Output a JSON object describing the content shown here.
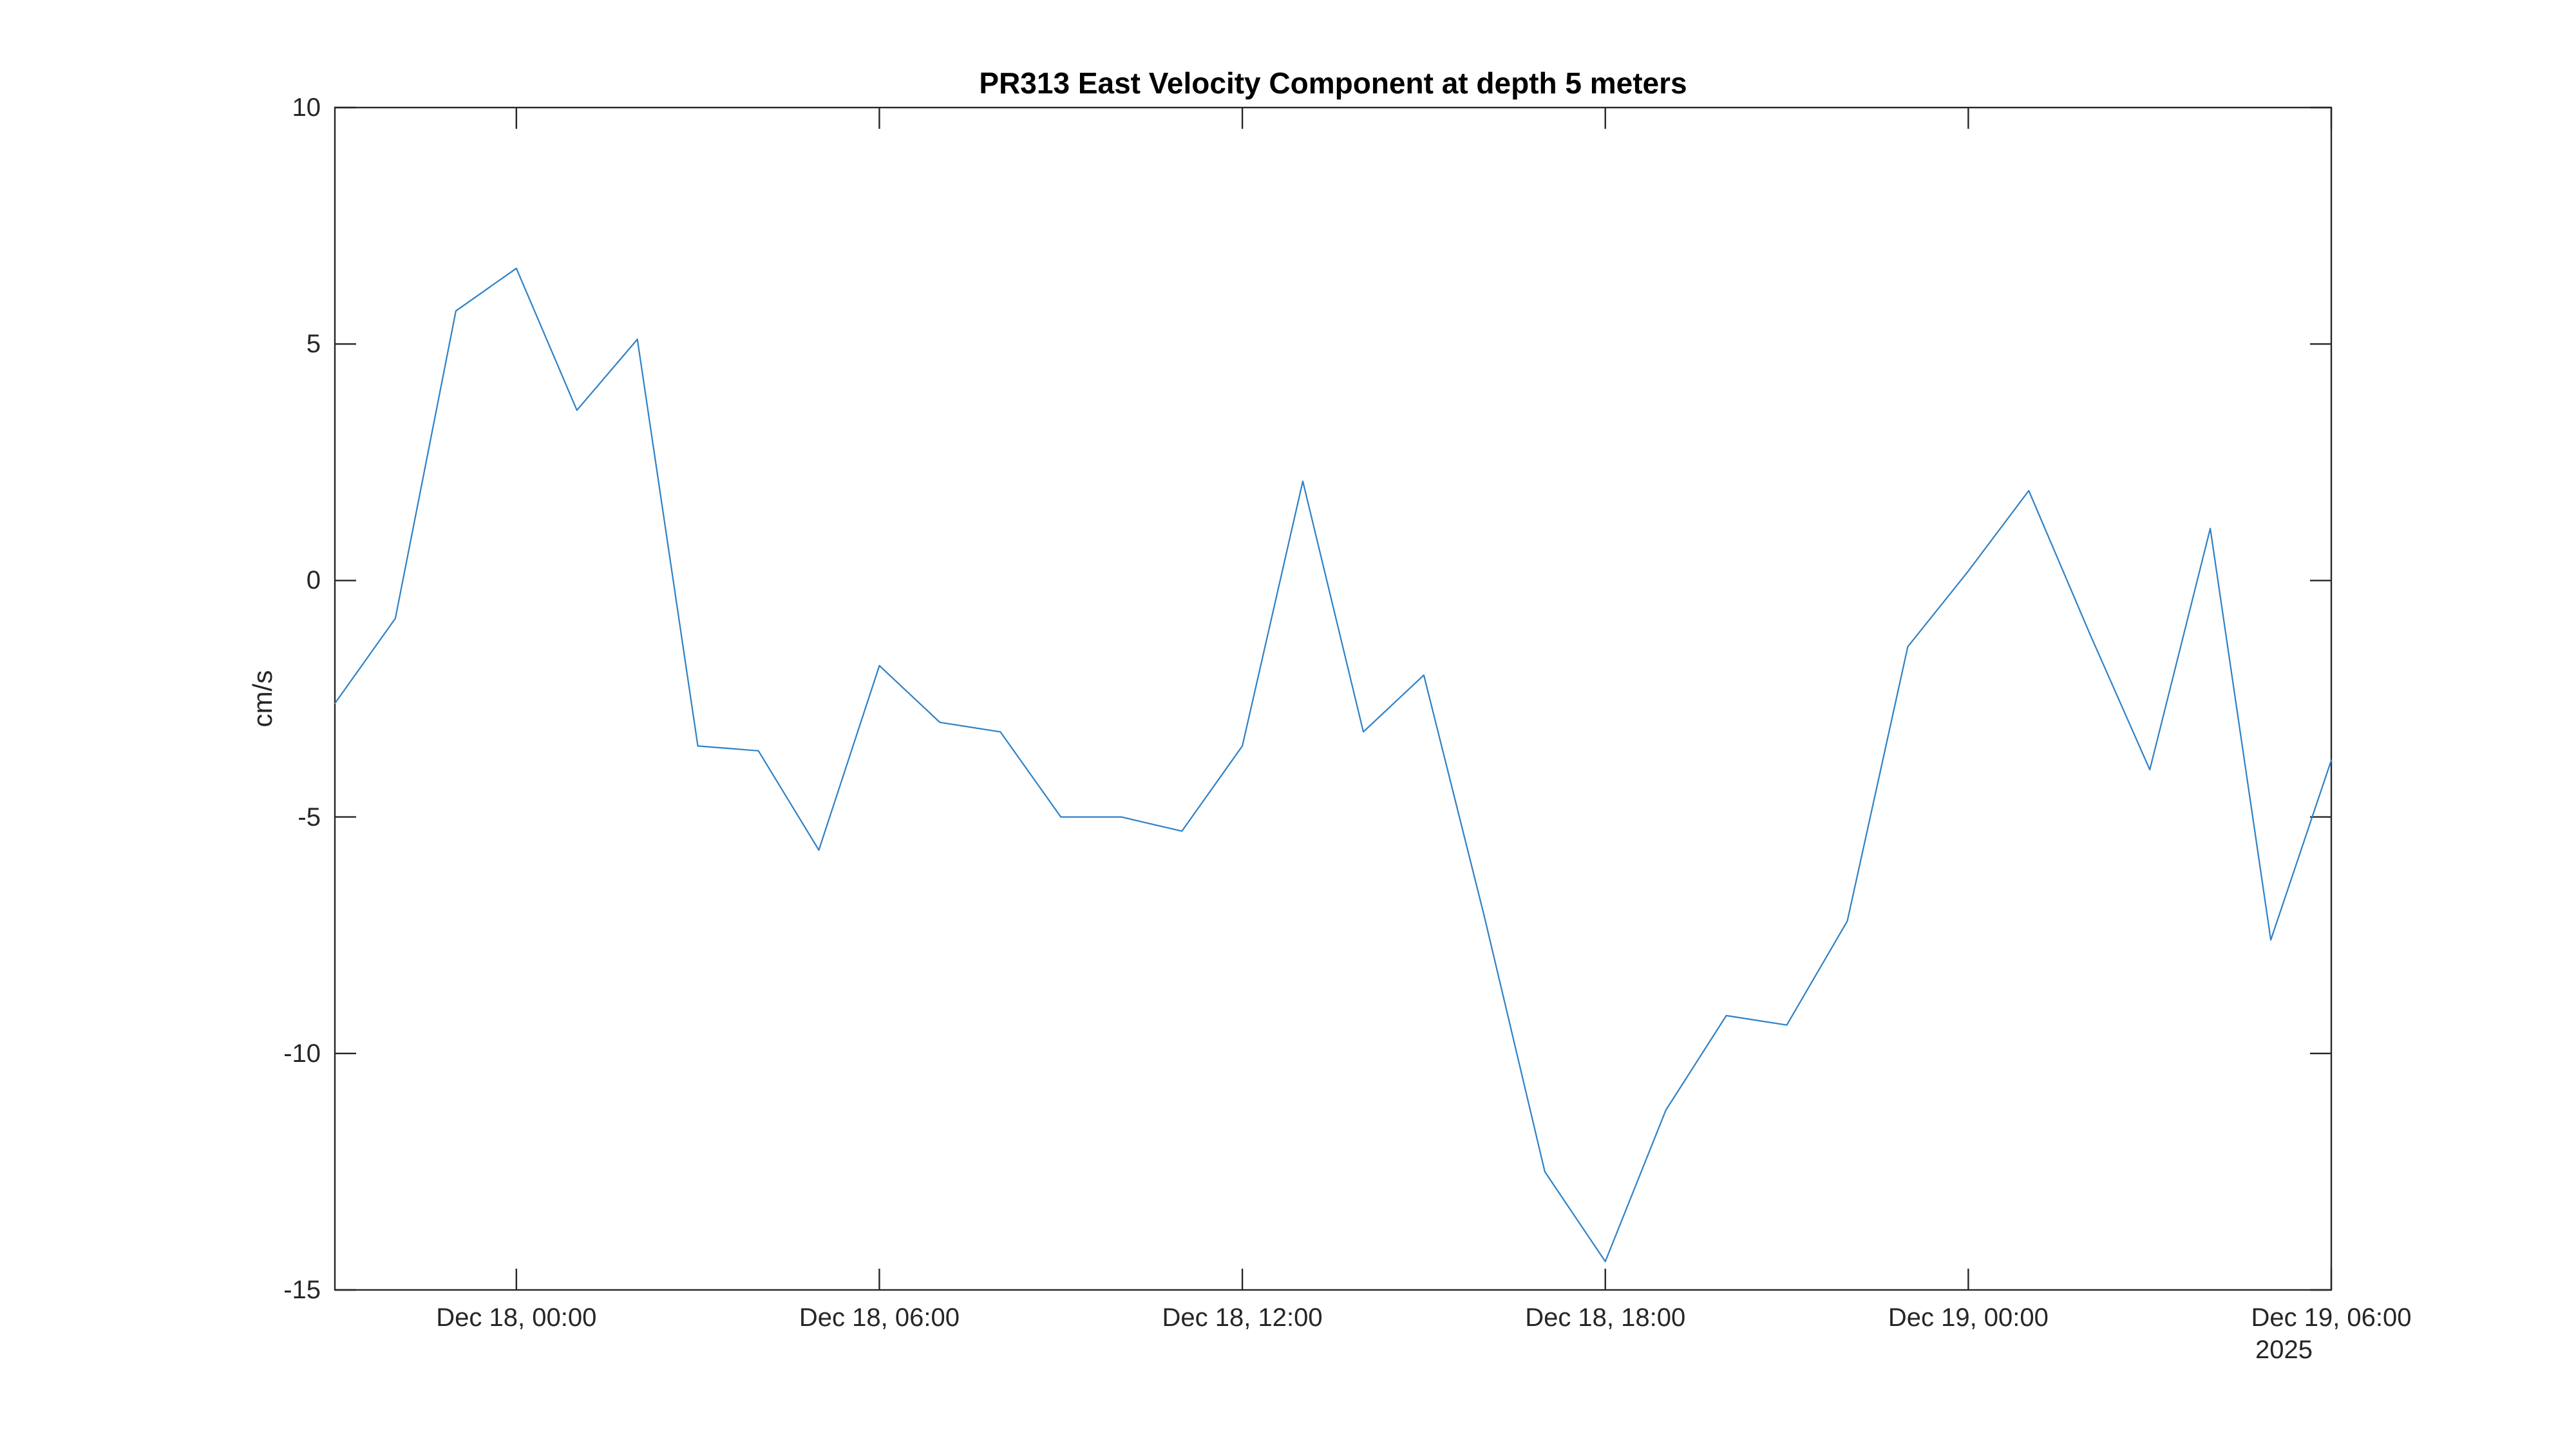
{
  "figure": {
    "background": "#ffffff",
    "title": "PR313 East Velocity Component at depth 5 meters"
  },
  "chart_data": {
    "type": "line",
    "title": "PR313 East Velocity Component at depth 5 meters",
    "xlabel": "",
    "ylabel": "cm/s",
    "ylim": [
      -15,
      10
    ],
    "y_ticks": [
      10,
      5,
      0,
      -5,
      -10,
      -15
    ],
    "grid": false,
    "legend": null,
    "box": true,
    "tick_direction": "in",
    "colors": {
      "line": "#2e81c6",
      "axis": "#262626",
      "title_text": "#000000",
      "background": "#ffffff"
    },
    "x_axis": {
      "start": "Dec 17, 2025 21:00",
      "end": "Dec 19, 2025 06:00",
      "interval_hours": 1,
      "total_hours": 33,
      "tick_hours_from_start": [
        3,
        9,
        15,
        21,
        27,
        33
      ],
      "tick_labels": [
        "Dec 18, 00:00",
        "Dec 18, 06:00",
        "Dec 18, 12:00",
        "Dec 18, 18:00",
        "Dec 19, 00:00",
        "Dec 19, 06:00"
      ],
      "secondary_label": "2025"
    },
    "series": [
      {
        "name": "East velocity component at 5 m depth",
        "units": "cm/s",
        "color": "#2e81c6",
        "x_hours_from_start": [
          0,
          1,
          2,
          3,
          4,
          5,
          6,
          7,
          8,
          9,
          10,
          11,
          12,
          13,
          14,
          15,
          16,
          17,
          18,
          19,
          20,
          21,
          22,
          23,
          24,
          25,
          26,
          27,
          28,
          29,
          30,
          31,
          32,
          33
        ],
        "times": [
          "Dec 17, 21:00",
          "Dec 17, 22:00",
          "Dec 17, 23:00",
          "Dec 18, 00:00",
          "Dec 18, 01:00",
          "Dec 18, 02:00",
          "Dec 18, 03:00",
          "Dec 18, 04:00",
          "Dec 18, 05:00",
          "Dec 18, 06:00",
          "Dec 18, 07:00",
          "Dec 18, 08:00",
          "Dec 18, 09:00",
          "Dec 18, 10:00",
          "Dec 18, 11:00",
          "Dec 18, 12:00",
          "Dec 18, 13:00",
          "Dec 18, 14:00",
          "Dec 18, 15:00",
          "Dec 18, 16:00",
          "Dec 18, 17:00",
          "Dec 18, 18:00",
          "Dec 18, 19:00",
          "Dec 18, 20:00",
          "Dec 18, 21:00",
          "Dec 18, 22:00",
          "Dec 18, 23:00",
          "Dec 19, 00:00",
          "Dec 19, 01:00",
          "Dec 19, 02:00",
          "Dec 19, 03:00",
          "Dec 19, 04:00",
          "Dec 19, 05:00",
          "Dec 19, 06:00"
        ],
        "values": [
          -2.6,
          -0.8,
          5.7,
          6.6,
          3.6,
          5.1,
          -3.5,
          -3.6,
          -5.7,
          -1.8,
          -3.0,
          -3.2,
          -5.0,
          -5.0,
          -5.3,
          -3.5,
          2.1,
          -3.2,
          -2.0,
          -7.1,
          -12.5,
          -14.4,
          -11.2,
          -9.2,
          -9.4,
          -7.2,
          -1.4,
          0.2,
          1.9,
          -1.1,
          -4.0,
          1.1,
          -7.6,
          -3.8
        ]
      }
    ]
  }
}
